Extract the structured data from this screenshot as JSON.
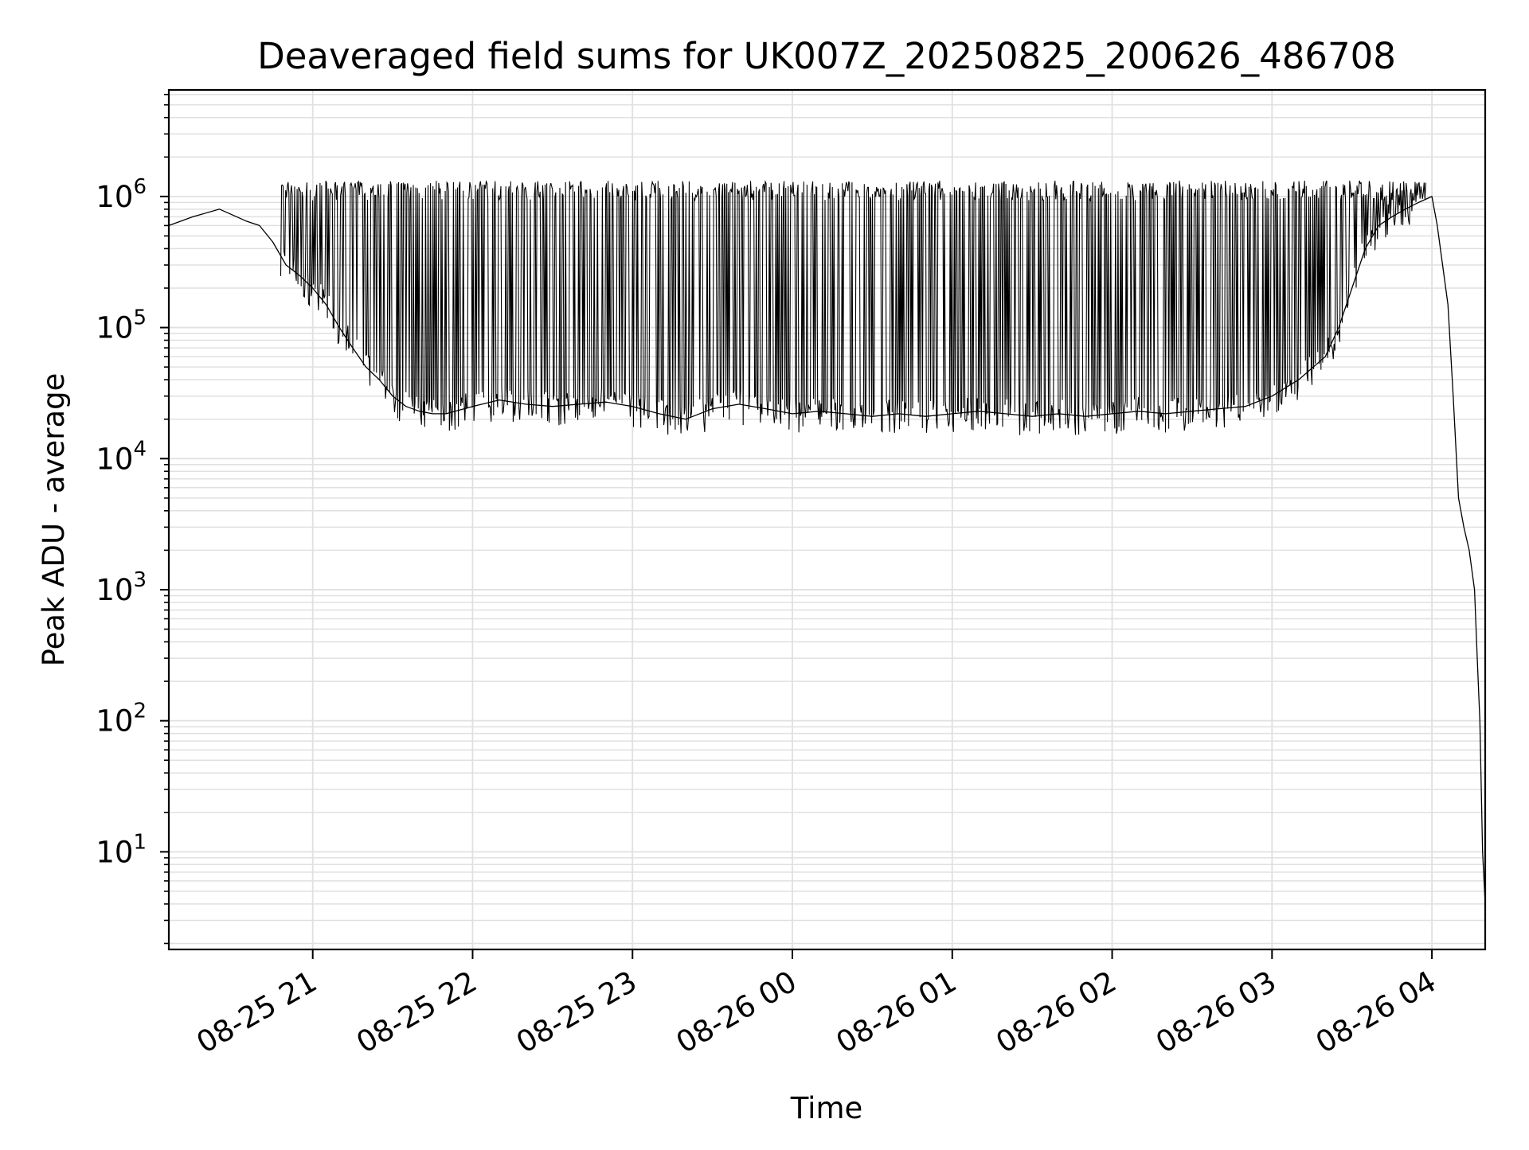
{
  "chart_data": {
    "type": "line",
    "title": "Deaveraged field sums for UK007Z_20250825_200626_486708",
    "xlabel": "Time",
    "ylabel": "Peak ADU - average",
    "yscale": "log",
    "xlim": [
      "2025-08-25 20:06",
      "2025-08-26 04:20"
    ],
    "ylim": [
      1.8,
      6500000
    ],
    "grid": true,
    "x_ticks": [
      {
        "value": "2025-08-25 21:00",
        "label": "08-25 21"
      },
      {
        "value": "2025-08-25 22:00",
        "label": "08-25 22"
      },
      {
        "value": "2025-08-25 23:00",
        "label": "08-25 23"
      },
      {
        "value": "2025-08-26 00:00",
        "label": "08-26 00"
      },
      {
        "value": "2025-08-26 01:00",
        "label": "08-26 01"
      },
      {
        "value": "2025-08-26 02:00",
        "label": "08-26 02"
      },
      {
        "value": "2025-08-26 03:00",
        "label": "08-26 03"
      },
      {
        "value": "2025-08-26 04:00",
        "label": "08-26 04"
      }
    ],
    "y_ticks": [
      {
        "value": 10,
        "base": "10",
        "exp": "1"
      },
      {
        "value": 100,
        "base": "10",
        "exp": "2"
      },
      {
        "value": 1000,
        "base": "10",
        "exp": "3"
      },
      {
        "value": 10000,
        "base": "10",
        "exp": "4"
      },
      {
        "value": 100000,
        "base": "10",
        "exp": "5"
      },
      {
        "value": 1000000,
        "base": "10",
        "exp": "6"
      }
    ],
    "line_color": "#000000",
    "grid_color": "#e0e0e0",
    "series": [
      {
        "x": [
          "2025-08-25 20:06",
          "2025-08-25 20:15",
          "2025-08-25 20:25",
          "2025-08-25 20:35",
          "2025-08-25 20:40",
          "2025-08-25 20:45",
          "2025-08-25 20:50",
          "2025-08-25 20:55",
          "2025-08-25 21:00",
          "2025-08-25 21:05",
          "2025-08-25 21:10",
          "2025-08-25 21:15",
          "2025-08-25 21:20",
          "2025-08-25 21:25",
          "2025-08-25 21:30",
          "2025-08-25 21:35",
          "2025-08-25 21:40",
          "2025-08-25 21:45",
          "2025-08-25 21:50",
          "2025-08-25 22:00",
          "2025-08-25 22:10",
          "2025-08-25 22:20",
          "2025-08-25 22:30",
          "2025-08-25 22:40",
          "2025-08-25 22:50",
          "2025-08-25 23:00",
          "2025-08-25 23:10",
          "2025-08-25 23:20",
          "2025-08-25 23:30",
          "2025-08-25 23:40",
          "2025-08-25 23:50",
          "2025-08-26 00:00",
          "2025-08-26 00:10",
          "2025-08-26 00:20",
          "2025-08-26 00:30",
          "2025-08-26 00:40",
          "2025-08-26 00:50",
          "2025-08-26 01:00",
          "2025-08-26 01:10",
          "2025-08-26 01:20",
          "2025-08-26 01:30",
          "2025-08-26 01:40",
          "2025-08-26 01:50",
          "2025-08-26 02:00",
          "2025-08-26 02:10",
          "2025-08-26 02:20",
          "2025-08-26 02:30",
          "2025-08-26 02:40",
          "2025-08-26 02:50",
          "2025-08-26 03:00",
          "2025-08-26 03:10",
          "2025-08-26 03:20",
          "2025-08-26 03:25",
          "2025-08-26 03:30",
          "2025-08-26 03:35",
          "2025-08-26 03:40",
          "2025-08-26 03:45",
          "2025-08-26 03:50",
          "2025-08-26 03:55",
          "2025-08-26 04:00",
          "2025-08-26 04:02",
          "2025-08-26 04:04",
          "2025-08-26 04:06",
          "2025-08-26 04:08",
          "2025-08-26 04:10",
          "2025-08-26 04:12",
          "2025-08-26 04:14",
          "2025-08-26 04:16",
          "2025-08-26 04:17",
          "2025-08-26 04:18",
          "2025-08-26 04:19",
          "2025-08-26 04:20"
        ],
        "values": [
          600000,
          700000,
          800000,
          650000,
          600000,
          450000,
          300000,
          250000,
          200000,
          150000,
          100000,
          70000,
          50000,
          40000,
          30000,
          25000,
          23000,
          22000,
          22000,
          25000,
          28000,
          26000,
          25000,
          26000,
          27000,
          25000,
          22000,
          20000,
          24000,
          26000,
          24000,
          22000,
          23000,
          22000,
          21000,
          22000,
          21000,
          22000,
          23000,
          22000,
          21000,
          22000,
          21000,
          22000,
          23000,
          22000,
          23000,
          24000,
          25000,
          30000,
          40000,
          60000,
          100000,
          200000,
          400000,
          600000,
          700000,
          800000,
          900000,
          1000000,
          600000,
          300000,
          150000,
          30000,
          5000,
          3000,
          2000,
          1000,
          300,
          100,
          10,
          4
        ]
      }
    ]
  }
}
